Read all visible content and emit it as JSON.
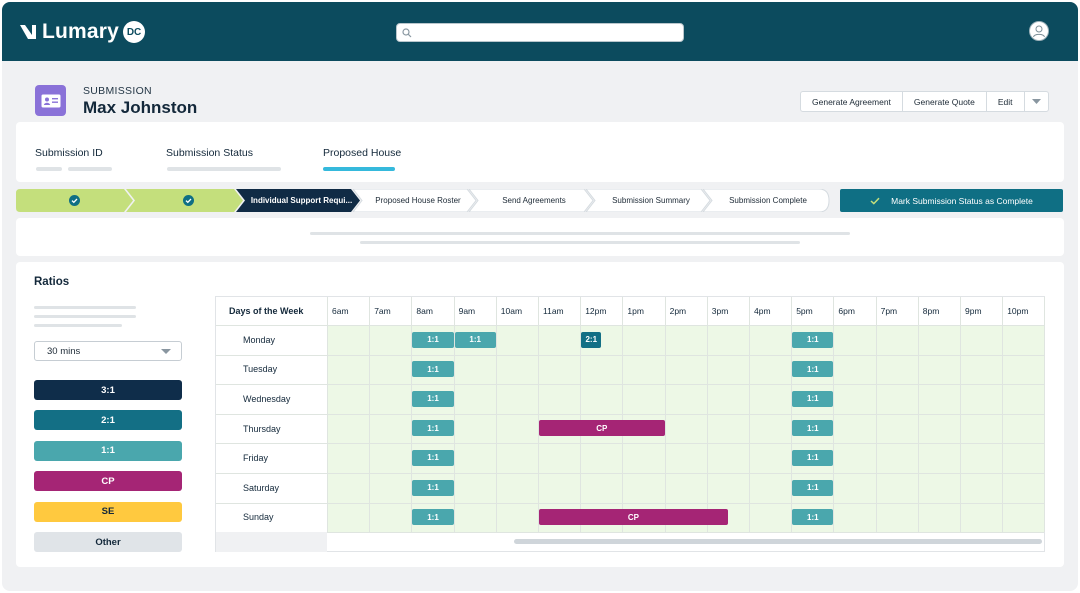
{
  "app": {
    "brand": "Lumary",
    "badge": "DC"
  },
  "search": {
    "placeholder": ""
  },
  "submission": {
    "label": "SUBMISSION",
    "name": "Max Johnston"
  },
  "actions": [
    "Generate Agreement",
    "Generate Quote",
    "Edit"
  ],
  "info_tabs": [
    {
      "label": "Submission ID"
    },
    {
      "label": "Submission Status"
    },
    {
      "label": "Proposed House",
      "active": true
    }
  ],
  "steps": [
    {
      "label": "",
      "state": "done"
    },
    {
      "label": "",
      "state": "done"
    },
    {
      "label": "Individual Support Requi...",
      "state": "current"
    },
    {
      "label": "Proposed House Roster",
      "state": "todo"
    },
    {
      "label": "Send Agreements",
      "state": "todo"
    },
    {
      "label": "Submission Summary",
      "state": "todo"
    },
    {
      "label": "Submission Complete",
      "state": "todo"
    }
  ],
  "mark_complete_label": "Mark Submission Status as Complete",
  "ratios": {
    "title": "Ratios",
    "interval": "30 mins",
    "legend": [
      {
        "label": "3:1",
        "color": "#0f2d4a",
        "text_color": "#ffffff"
      },
      {
        "label": "2:1",
        "color": "#136f85",
        "text_color": "#ffffff"
      },
      {
        "label": "1:1",
        "color": "#4aa7ad",
        "text_color": "#ffffff"
      },
      {
        "label": "CP",
        "color": "#a52575",
        "text_color": "#ffffff"
      },
      {
        "label": "SE",
        "color": "#ffc93f",
        "text_color": "#13283a"
      },
      {
        "label": "Other",
        "color": "#e0e4e8",
        "text_color": "#13283a"
      }
    ]
  },
  "schedule": {
    "header_label": "Days of the Week",
    "hours": [
      "6am",
      "7am",
      "8am",
      "9am",
      "10am",
      "11am",
      "12pm",
      "1pm",
      "2pm",
      "3pm",
      "4pm",
      "5pm",
      "6pm",
      "7pm",
      "8pm",
      "9pm",
      "10pm"
    ],
    "days": [
      "Monday",
      "Tuesday",
      "Wednesday",
      "Thursday",
      "Friday",
      "Saturday",
      "Sunday"
    ],
    "blocks": [
      {
        "day": "Monday",
        "start": "8am",
        "end": "9am",
        "label": "1:1",
        "type": "1:1"
      },
      {
        "day": "Monday",
        "start": "9am",
        "end": "10am",
        "label": "1:1",
        "type": "1:1"
      },
      {
        "day": "Monday",
        "start": "12pm",
        "end": "12:30pm",
        "label": "2:1",
        "type": "2:1"
      },
      {
        "day": "Monday",
        "start": "5pm",
        "end": "6pm",
        "label": "1:1",
        "type": "1:1"
      },
      {
        "day": "Tuesday",
        "start": "8am",
        "end": "9am",
        "label": "1:1",
        "type": "1:1"
      },
      {
        "day": "Tuesday",
        "start": "5pm",
        "end": "6pm",
        "label": "1:1",
        "type": "1:1"
      },
      {
        "day": "Wednesday",
        "start": "8am",
        "end": "9am",
        "label": "1:1",
        "type": "1:1"
      },
      {
        "day": "Wednesday",
        "start": "5pm",
        "end": "6pm",
        "label": "1:1",
        "type": "1:1"
      },
      {
        "day": "Thursday",
        "start": "8am",
        "end": "9am",
        "label": "1:1",
        "type": "1:1"
      },
      {
        "day": "Thursday",
        "start": "11am",
        "end": "2pm",
        "label": "CP",
        "type": "CP"
      },
      {
        "day": "Thursday",
        "start": "5pm",
        "end": "6pm",
        "label": "1:1",
        "type": "1:1"
      },
      {
        "day": "Friday",
        "start": "8am",
        "end": "9am",
        "label": "1:1",
        "type": "1:1"
      },
      {
        "day": "Friday",
        "start": "5pm",
        "end": "6pm",
        "label": "1:1",
        "type": "1:1"
      },
      {
        "day": "Saturday",
        "start": "8am",
        "end": "9am",
        "label": "1:1",
        "type": "1:1"
      },
      {
        "day": "Saturday",
        "start": "5pm",
        "end": "6pm",
        "label": "1:1",
        "type": "1:1"
      },
      {
        "day": "Sunday",
        "start": "8am",
        "end": "9am",
        "label": "1:1",
        "type": "1:1"
      },
      {
        "day": "Sunday",
        "start": "11am",
        "end": "3:30pm",
        "label": "CP",
        "type": "CP"
      },
      {
        "day": "Sunday",
        "start": "5pm",
        "end": "6pm",
        "label": "1:1",
        "type": "1:1"
      }
    ]
  },
  "icons": {
    "logo": "lumary-logo-icon",
    "search": "search-icon",
    "avatar": "user-avatar-icon",
    "submission": "id-card-icon",
    "check": "check-circle-icon",
    "dropdown": "chevron-down-icon"
  },
  "colors": {
    "topbar": "#0c4b5e",
    "step_done": "#c4df7c",
    "step_current": "#102b45",
    "accent": "#0f6f84",
    "active_underline": "#35b9dc",
    "grid_fill": "#edf8e6"
  }
}
